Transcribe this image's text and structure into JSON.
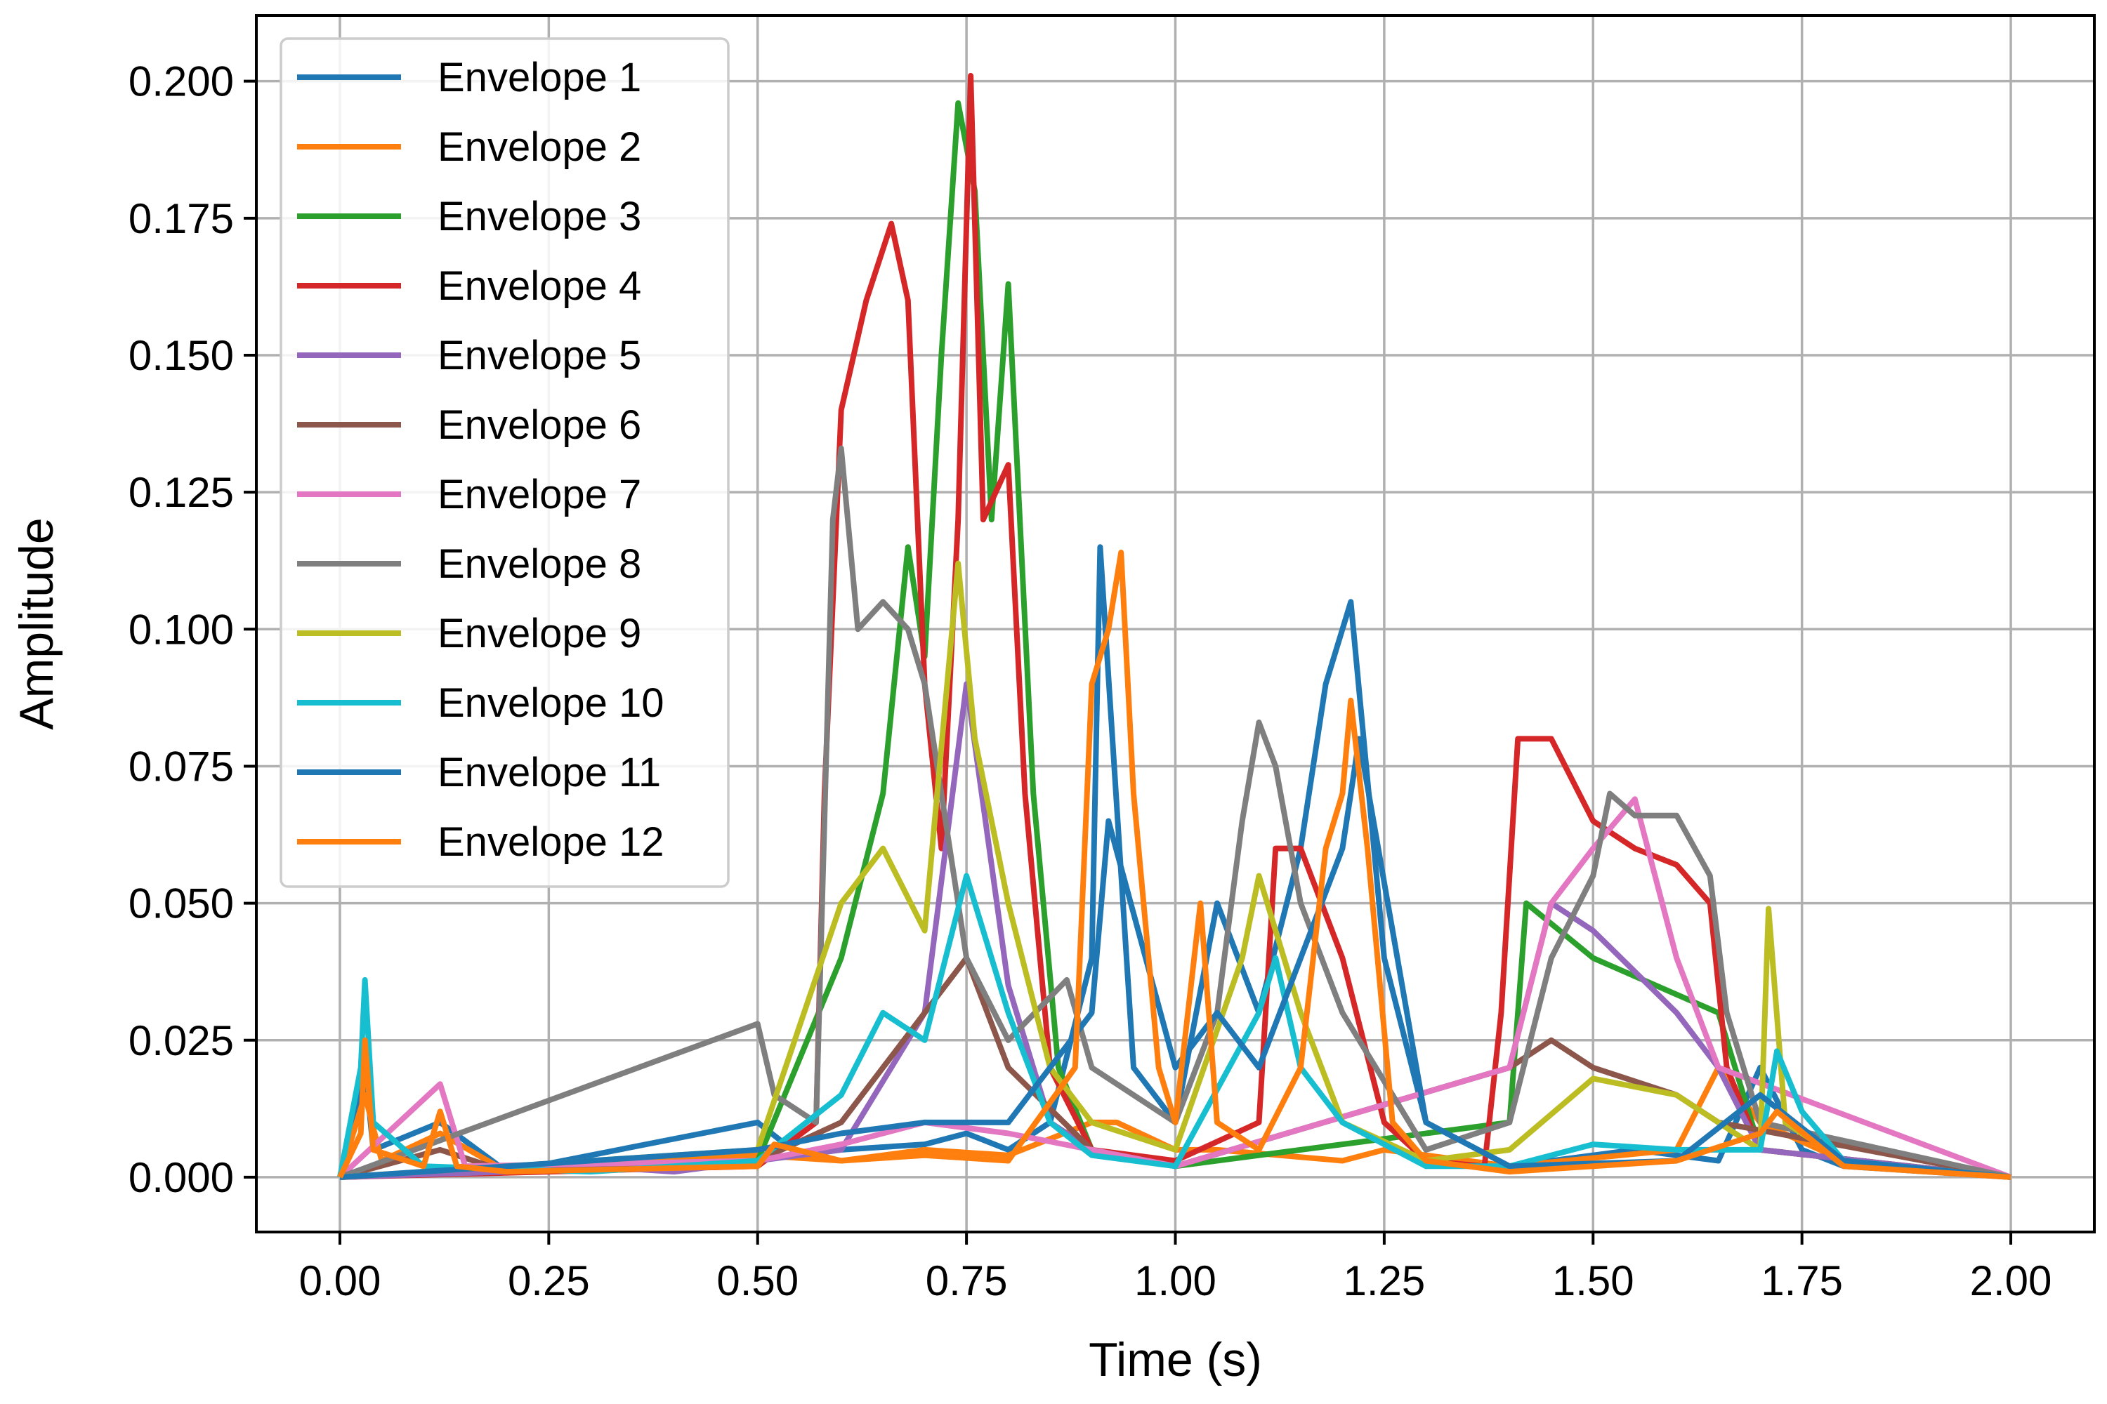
{
  "chart_data": {
    "type": "line",
    "title": "",
    "xlabel": "Time (s)",
    "ylabel": "Amplitude",
    "xlim": [
      -0.1,
      2.1
    ],
    "ylim": [
      -0.01,
      0.212
    ],
    "xticks": [
      0.0,
      0.25,
      0.5,
      0.75,
      1.0,
      1.25,
      1.5,
      1.75,
      2.0
    ],
    "xtick_labels": [
      "0.00",
      "0.25",
      "0.50",
      "0.75",
      "1.00",
      "1.25",
      "1.50",
      "1.75",
      "2.00"
    ],
    "yticks": [
      0.0,
      0.025,
      0.05,
      0.075,
      0.1,
      0.125,
      0.15,
      0.175,
      0.2
    ],
    "ytick_labels": [
      "0.000",
      "0.025",
      "0.050",
      "0.075",
      "0.100",
      "0.125",
      "0.150",
      "0.175",
      "0.200"
    ],
    "grid": true,
    "legend_position": "top-left",
    "series": [
      {
        "name": "Envelope 1",
        "color": "#1f77b4",
        "x": [
          0.0,
          0.03,
          0.04,
          0.12,
          0.2,
          0.5,
          0.55,
          0.6,
          0.7,
          0.75,
          0.8,
          0.85,
          0.9,
          0.91,
          0.95,
          1.0,
          1.05,
          1.1,
          1.15,
          1.18,
          1.21,
          1.25,
          1.3,
          1.4,
          1.55,
          1.65,
          1.7,
          1.75,
          1.8,
          2.0
        ],
        "y": [
          0.0,
          0.02,
          0.005,
          0.01,
          0.001,
          0.01,
          0.004,
          0.005,
          0.006,
          0.008,
          0.005,
          0.01,
          0.04,
          0.115,
          0.02,
          0.01,
          0.05,
          0.03,
          0.06,
          0.09,
          0.105,
          0.04,
          0.01,
          0.002,
          0.005,
          0.003,
          0.02,
          0.005,
          0.002,
          0.0
        ]
      },
      {
        "name": "Envelope 2",
        "color": "#ff7f0e",
        "x": [
          0.0,
          0.03,
          0.05,
          0.12,
          0.2,
          0.5,
          0.6,
          0.7,
          0.8,
          0.9,
          0.93,
          1.0,
          1.05,
          1.2,
          1.25,
          1.4,
          1.6,
          1.65,
          1.7,
          1.8,
          2.0
        ],
        "y": [
          0.0,
          0.015,
          0.003,
          0.008,
          0.001,
          0.004,
          0.003,
          0.005,
          0.004,
          0.01,
          0.01,
          0.005,
          0.005,
          0.003,
          0.005,
          0.002,
          0.005,
          0.02,
          0.01,
          0.003,
          0.0
        ]
      },
      {
        "name": "Envelope 3",
        "color": "#2ca02c",
        "x": [
          0.0,
          0.5,
          0.6,
          0.65,
          0.68,
          0.7,
          0.72,
          0.74,
          0.76,
          0.78,
          0.8,
          0.83,
          0.86,
          0.9,
          1.0,
          1.4,
          1.42,
          1.5,
          1.65,
          1.7,
          2.0
        ],
        "y": [
          0.0,
          0.003,
          0.04,
          0.07,
          0.115,
          0.095,
          0.15,
          0.196,
          0.18,
          0.12,
          0.163,
          0.07,
          0.02,
          0.005,
          0.002,
          0.01,
          0.05,
          0.04,
          0.03,
          0.005,
          0.0
        ]
      },
      {
        "name": "Envelope 4",
        "color": "#d62728",
        "x": [
          0.0,
          0.5,
          0.57,
          0.58,
          0.6,
          0.63,
          0.66,
          0.68,
          0.7,
          0.72,
          0.74,
          0.755,
          0.77,
          0.8,
          0.82,
          0.85,
          0.9,
          1.0,
          1.1,
          1.12,
          1.15,
          1.2,
          1.25,
          1.3,
          1.37,
          1.39,
          1.41,
          1.43,
          1.45,
          1.5,
          1.55,
          1.6,
          1.64,
          1.66,
          1.7,
          2.0
        ],
        "y": [
          0.0,
          0.002,
          0.01,
          0.07,
          0.14,
          0.16,
          0.174,
          0.16,
          0.09,
          0.06,
          0.12,
          0.201,
          0.12,
          0.13,
          0.07,
          0.02,
          0.005,
          0.003,
          0.01,
          0.06,
          0.06,
          0.04,
          0.01,
          0.003,
          0.002,
          0.03,
          0.08,
          0.08,
          0.08,
          0.065,
          0.06,
          0.057,
          0.05,
          0.02,
          0.005,
          0.0
        ]
      },
      {
        "name": "Envelope 5",
        "color": "#9467bd",
        "x": [
          0.0,
          0.2,
          0.3,
          0.4,
          0.5,
          0.6,
          0.7,
          0.75,
          0.8,
          0.85,
          0.9,
          1.0,
          1.4,
          1.45,
          1.5,
          1.6,
          1.65,
          1.7,
          2.0
        ],
        "y": [
          0.0,
          0.001,
          0.002,
          0.001,
          0.003,
          0.005,
          0.03,
          0.09,
          0.035,
          0.01,
          0.005,
          0.002,
          0.02,
          0.05,
          0.045,
          0.03,
          0.02,
          0.005,
          0.0
        ]
      },
      {
        "name": "Envelope 6",
        "color": "#8c564b",
        "x": [
          0.0,
          0.12,
          0.18,
          0.5,
          0.6,
          0.7,
          0.75,
          0.8,
          0.9,
          1.0,
          1.4,
          1.45,
          1.5,
          1.6,
          1.65,
          2.0
        ],
        "y": [
          0.0,
          0.005,
          0.002,
          0.003,
          0.01,
          0.03,
          0.04,
          0.02,
          0.005,
          0.002,
          0.02,
          0.025,
          0.02,
          0.015,
          0.01,
          0.0
        ]
      },
      {
        "name": "Envelope 7",
        "color": "#e377c2",
        "x": [
          0.0,
          0.12,
          0.15,
          0.5,
          0.6,
          0.7,
          0.8,
          0.9,
          1.0,
          1.4,
          1.45,
          1.5,
          1.55,
          1.6,
          1.65,
          2.0
        ],
        "y": [
          0.0,
          0.017,
          0.002,
          0.003,
          0.006,
          0.01,
          0.008,
          0.005,
          0.002,
          0.02,
          0.05,
          0.06,
          0.069,
          0.04,
          0.02,
          0.0
        ]
      },
      {
        "name": "Envelope 8",
        "color": "#7f7f7f",
        "x": [
          0.0,
          0.5,
          0.52,
          0.57,
          0.59,
          0.6,
          0.62,
          0.65,
          0.68,
          0.7,
          0.75,
          0.8,
          0.87,
          0.9,
          1.0,
          1.05,
          1.08,
          1.1,
          1.12,
          1.15,
          1.2,
          1.3,
          1.4,
          1.45,
          1.5,
          1.52,
          1.55,
          1.6,
          1.64,
          1.66,
          1.7,
          2.0
        ],
        "y": [
          0.0,
          0.028,
          0.015,
          0.01,
          0.12,
          0.133,
          0.1,
          0.105,
          0.1,
          0.09,
          0.04,
          0.025,
          0.036,
          0.02,
          0.01,
          0.03,
          0.065,
          0.083,
          0.075,
          0.05,
          0.03,
          0.005,
          0.01,
          0.04,
          0.055,
          0.07,
          0.066,
          0.066,
          0.055,
          0.03,
          0.01,
          0.0
        ]
      },
      {
        "name": "Envelope 9",
        "color": "#bcbd22",
        "x": [
          0.0,
          0.5,
          0.6,
          0.65,
          0.7,
          0.74,
          0.76,
          0.8,
          0.85,
          0.9,
          1.0,
          1.08,
          1.1,
          1.15,
          1.2,
          1.3,
          1.4,
          1.5,
          1.6,
          1.65,
          1.7,
          1.71,
          1.73,
          1.8,
          2.0
        ],
        "y": [
          0.0,
          0.005,
          0.05,
          0.06,
          0.045,
          0.112,
          0.08,
          0.05,
          0.02,
          0.01,
          0.005,
          0.04,
          0.055,
          0.03,
          0.01,
          0.003,
          0.005,
          0.018,
          0.015,
          0.01,
          0.005,
          0.049,
          0.01,
          0.003,
          0.0
        ]
      },
      {
        "name": "Envelope 10",
        "color": "#17becf",
        "x": [
          0.0,
          0.025,
          0.03,
          0.04,
          0.1,
          0.3,
          0.5,
          0.6,
          0.65,
          0.7,
          0.75,
          0.8,
          0.85,
          0.9,
          1.0,
          1.1,
          1.12,
          1.15,
          1.2,
          1.3,
          1.4,
          1.5,
          1.6,
          1.7,
          1.72,
          1.75,
          1.8,
          2.0
        ],
        "y": [
          0.0,
          0.02,
          0.036,
          0.01,
          0.002,
          0.001,
          0.003,
          0.015,
          0.03,
          0.025,
          0.055,
          0.03,
          0.01,
          0.004,
          0.002,
          0.03,
          0.04,
          0.02,
          0.01,
          0.002,
          0.002,
          0.006,
          0.005,
          0.005,
          0.023,
          0.012,
          0.003,
          0.0
        ]
      },
      {
        "name": "Envelope 11",
        "color": "#1f77b4",
        "x": [
          0.0,
          0.5,
          0.6,
          0.7,
          0.8,
          0.9,
          0.92,
          1.0,
          1.05,
          1.1,
          1.2,
          1.22,
          1.3,
          1.4,
          1.6,
          1.7,
          1.8,
          2.0
        ],
        "y": [
          0.0,
          0.005,
          0.008,
          0.01,
          0.01,
          0.03,
          0.065,
          0.02,
          0.03,
          0.02,
          0.06,
          0.08,
          0.01,
          0.002,
          0.003,
          0.015,
          0.003,
          0.0
        ]
      },
      {
        "name": "Envelope 12",
        "color": "#ff7f0e",
        "x": [
          0.0,
          0.025,
          0.03,
          0.04,
          0.1,
          0.12,
          0.14,
          0.2,
          0.5,
          0.52,
          0.6,
          0.7,
          0.8,
          0.88,
          0.9,
          0.92,
          0.935,
          0.95,
          0.98,
          1.0,
          1.03,
          1.05,
          1.1,
          1.15,
          1.18,
          1.2,
          1.21,
          1.23,
          1.26,
          1.3,
          1.4,
          1.5,
          1.6,
          1.7,
          1.72,
          1.8,
          2.0
        ],
        "y": [
          0.0,
          0.008,
          0.025,
          0.005,
          0.002,
          0.012,
          0.002,
          0.001,
          0.002,
          0.006,
          0.003,
          0.004,
          0.003,
          0.02,
          0.09,
          0.1,
          0.114,
          0.07,
          0.02,
          0.01,
          0.05,
          0.01,
          0.005,
          0.02,
          0.06,
          0.07,
          0.087,
          0.06,
          0.01,
          0.003,
          0.001,
          0.002,
          0.003,
          0.008,
          0.012,
          0.002,
          0.0
        ]
      }
    ]
  }
}
